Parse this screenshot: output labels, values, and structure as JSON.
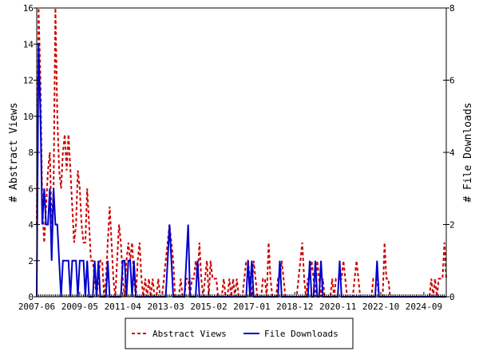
{
  "chart_data": {
    "type": "line",
    "title": "",
    "xlabel": "",
    "ylabel": "# Abstract Views",
    "y2label": "# File Downloads",
    "x_start": "2007-06",
    "x_interval": "month",
    "x_tick_labels": [
      "2007-06",
      "2009-05",
      "2011-04",
      "2013-03",
      "2015-02",
      "2017-01",
      "2018-12",
      "2020-11",
      "2022-10",
      "2024-09"
    ],
    "ylim": [
      0,
      16
    ],
    "y_ticks": [
      0,
      2,
      4,
      6,
      8,
      10,
      12,
      14,
      16
    ],
    "y2lim": [
      0,
      8
    ],
    "y2_ticks": [
      0,
      2,
      4,
      6,
      8
    ],
    "grid": false,
    "legend_position": "bottom",
    "series": [
      {
        "name": "Abstract Views",
        "axis": "left",
        "color": "#cc0000",
        "style": "dashed",
        "values": [
          4,
          16,
          12,
          5,
          3,
          5,
          7,
          8,
          4,
          6,
          16,
          10,
          7,
          6,
          8,
          9,
          7,
          9,
          7,
          5,
          3,
          4,
          7,
          6,
          4,
          3,
          3,
          6,
          4,
          2,
          2,
          1,
          0,
          1,
          2,
          2,
          0,
          1,
          3,
          5,
          3,
          1,
          0,
          2,
          4,
          3,
          1,
          0,
          2,
          3,
          2,
          3,
          1,
          0,
          2,
          3,
          1,
          0,
          1,
          0,
          1,
          0,
          1,
          0,
          0,
          1,
          0,
          0,
          1,
          2,
          3,
          4,
          3,
          2,
          0,
          0,
          0,
          1,
          0,
          0,
          1,
          1,
          0,
          1,
          1,
          2,
          1,
          3,
          1,
          0,
          1,
          2,
          0,
          2,
          1,
          1,
          1,
          0,
          0,
          0,
          1,
          0,
          0,
          1,
          0,
          1,
          0,
          1,
          0,
          0,
          0,
          1,
          2,
          2,
          1,
          0,
          2,
          1,
          0,
          0,
          0,
          1,
          1,
          0,
          3,
          1,
          0,
          0,
          0,
          1,
          1,
          2,
          1,
          0,
          0,
          0,
          0,
          0,
          0,
          0,
          1,
          2,
          3,
          1,
          0,
          1,
          1,
          2,
          1,
          0,
          2,
          1,
          0,
          1,
          0,
          0,
          0,
          0,
          1,
          0,
          1,
          1,
          1,
          1,
          2,
          1,
          0,
          0,
          0,
          0,
          1,
          2,
          1,
          0,
          0,
          0,
          0,
          0,
          0,
          0,
          1,
          1,
          1,
          0,
          0,
          0,
          3,
          1,
          1,
          0,
          0,
          0,
          0,
          0,
          0,
          0,
          0,
          0,
          0,
          0,
          0,
          0,
          0,
          0,
          0,
          0,
          0,
          0,
          0,
          0,
          0,
          1,
          0,
          1,
          0,
          1,
          1,
          1,
          3,
          1
        ]
      },
      {
        "name": "File Downloads",
        "axis": "right",
        "color": "#0000cc",
        "style": "solid",
        "values": [
          0,
          7,
          5,
          2,
          3,
          2,
          2,
          3,
          1,
          3,
          2,
          2,
          1,
          0,
          1,
          1,
          1,
          1,
          0,
          1,
          1,
          1,
          0,
          1,
          1,
          1,
          0,
          1,
          0,
          0,
          0,
          1,
          0,
          1,
          0,
          0,
          0,
          0,
          1,
          0,
          0,
          0,
          0,
          0,
          0,
          0,
          1,
          1,
          0,
          1,
          1,
          0,
          1,
          0,
          0,
          0,
          0,
          0,
          0,
          0,
          0,
          0,
          0,
          0,
          0,
          0,
          0,
          0,
          0,
          0,
          1,
          2,
          1,
          0,
          0,
          0,
          0,
          0,
          0,
          0,
          1,
          2,
          0,
          0,
          0,
          0,
          1,
          0,
          0,
          0,
          0,
          0,
          0,
          0,
          0,
          0,
          0,
          0,
          0,
          0,
          0,
          0,
          0,
          0,
          0,
          0,
          0,
          0,
          0,
          0,
          0,
          0,
          0,
          1,
          0,
          1,
          0,
          0,
          0,
          0,
          0,
          0,
          0,
          0,
          0,
          0,
          0,
          0,
          0,
          0,
          1,
          0,
          0,
          0,
          0,
          0,
          0,
          0,
          0,
          0,
          0,
          0,
          0,
          0,
          0,
          0,
          1,
          0,
          0,
          1,
          0,
          0,
          1,
          0,
          0,
          0,
          0,
          0,
          0,
          0,
          0,
          0,
          1,
          0,
          0,
          0,
          0,
          0,
          0,
          0,
          0,
          0,
          0,
          0,
          0,
          0,
          0,
          0,
          0,
          0,
          0,
          0,
          1,
          0,
          0,
          0,
          0,
          0,
          0,
          0,
          0,
          0,
          0,
          0,
          0,
          0,
          0,
          0,
          0,
          0,
          0,
          0,
          0,
          0,
          0,
          0,
          0,
          0,
          0,
          0,
          0,
          0,
          0,
          0,
          0,
          0,
          0,
          0,
          0,
          0
        ]
      }
    ]
  }
}
